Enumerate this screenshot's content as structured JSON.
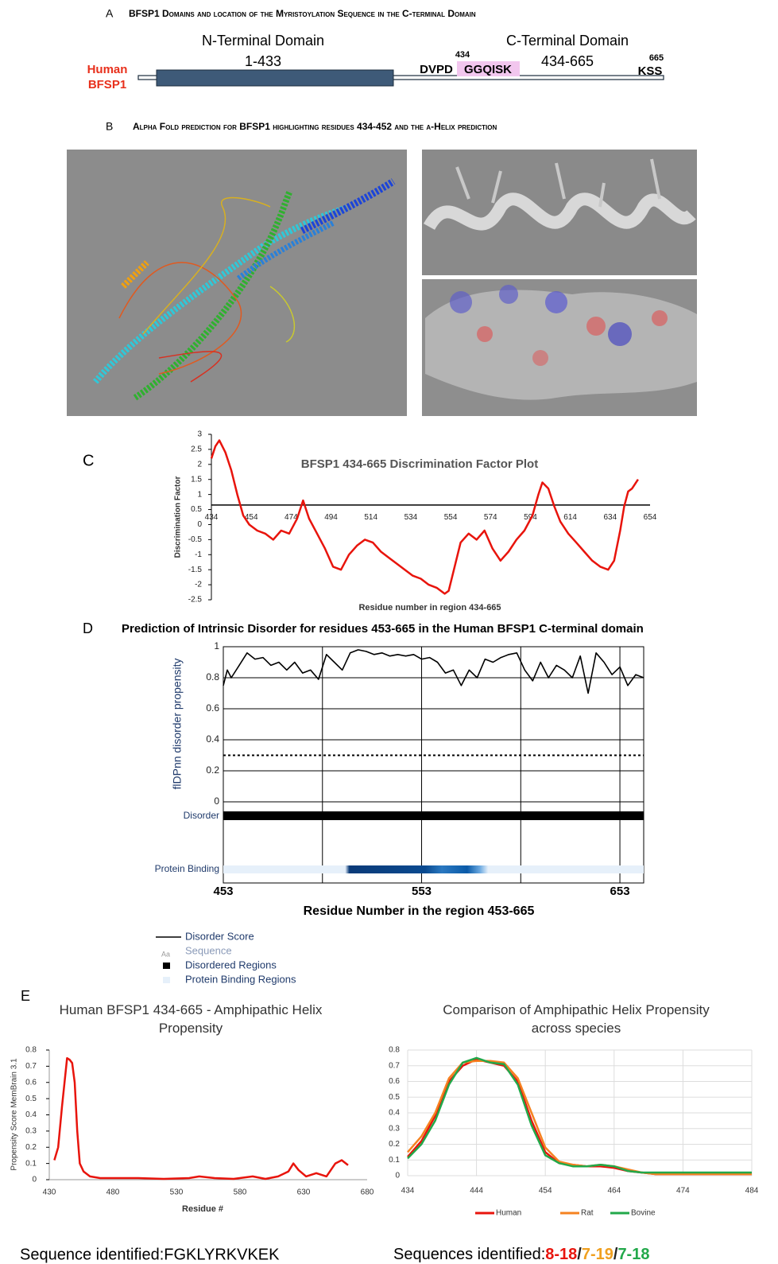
{
  "panel_a": {
    "label": "A",
    "title": "BFSP1 Domains and location of the Myristoylation Sequence in the C-terminal Domain",
    "species": [
      "Human",
      "BFSP1"
    ],
    "n_domain": {
      "name": "N-Terminal Domain",
      "range": "1-433"
    },
    "c_domain": {
      "name": "C-Terminal Domain",
      "range": "434-665"
    },
    "motif_start": "434",
    "motif_prefix": "DVPD",
    "motif": "GGQISK",
    "end_position": "665",
    "end_motif": "KSS"
  },
  "panel_b": {
    "label": "B",
    "title": "Alpha Fold prediction for BFSP1 highlighting residues 434-452 and the α-Helix prediction"
  },
  "chart_data": [
    {
      "type": "line",
      "panel_label": "C",
      "title": "BFSP1 434-665 Discrimination Factor Plot",
      "ylabel": "Discrimination Factor",
      "xlabel": "Residue number in region 434-665",
      "x": [
        434,
        436,
        438,
        441,
        444,
        447,
        450,
        453,
        457,
        461,
        465,
        469,
        473,
        477,
        480,
        483,
        487,
        491,
        495,
        499,
        503,
        507,
        511,
        515,
        519,
        523,
        527,
        531,
        535,
        539,
        543,
        547,
        551,
        553,
        556,
        559,
        563,
        567,
        571,
        575,
        579,
        583,
        587,
        591,
        595,
        598,
        600,
        603,
        606,
        609,
        613,
        617,
        621,
        625,
        629,
        633,
        636,
        639,
        641,
        643,
        645,
        648
      ],
      "values": [
        2.2,
        2.6,
        2.8,
        2.4,
        1.8,
        1.0,
        0.3,
        0.0,
        -0.2,
        -0.3,
        -0.5,
        -0.2,
        -0.3,
        0.2,
        0.8,
        0.2,
        -0.3,
        -0.8,
        -1.4,
        -1.5,
        -1.0,
        -0.7,
        -0.5,
        -0.6,
        -0.9,
        -1.1,
        -1.3,
        -1.5,
        -1.7,
        -1.8,
        -2.0,
        -2.1,
        -2.3,
        -2.2,
        -1.4,
        -0.6,
        -0.3,
        -0.5,
        -0.2,
        -0.8,
        -1.2,
        -0.9,
        -0.5,
        -0.2,
        0.3,
        1.0,
        1.4,
        1.2,
        0.6,
        0.1,
        -0.3,
        -0.6,
        -0.9,
        -1.2,
        -1.4,
        -1.5,
        -1.2,
        -0.2,
        0.6,
        1.1,
        1.2,
        1.5
      ],
      "color": "#e8140c",
      "threshold": 0.65,
      "xlim": [
        434,
        654
      ],
      "xticks": [
        434,
        454,
        474,
        494,
        514,
        534,
        554,
        574,
        594,
        614,
        634,
        654
      ],
      "ylim": [
        -2.5,
        3
      ],
      "yticks": [
        -2.5,
        -2,
        -1.5,
        -1,
        -0.5,
        0,
        0.5,
        1,
        1.5,
        2,
        2.5,
        3
      ]
    },
    {
      "type": "line",
      "panel_label": "D",
      "title": "Prediction of Intrinsic Disorder for residues 453-665 in the Human BFSP1 C-terminal domain",
      "ylabel": "flDPnn disorder propensity",
      "xlabel": "Residue Number in the region 453-665",
      "x": [
        453,
        455,
        457,
        461,
        465,
        469,
        473,
        477,
        481,
        485,
        489,
        493,
        497,
        501,
        505,
        509,
        513,
        517,
        521,
        525,
        529,
        533,
        537,
        541,
        545,
        549,
        553,
        557,
        561,
        565,
        569,
        573,
        577,
        581,
        585,
        589,
        593,
        597,
        601,
        605,
        609,
        613,
        617,
        621,
        625,
        629,
        633,
        637,
        641,
        645,
        649,
        653,
        657,
        661,
        665
      ],
      "series": [
        {
          "name": "Disorder Score",
          "color": "#000000",
          "values": [
            0.75,
            0.85,
            0.8,
            0.88,
            0.96,
            0.92,
            0.93,
            0.88,
            0.9,
            0.85,
            0.9,
            0.83,
            0.85,
            0.79,
            0.95,
            0.9,
            0.85,
            0.96,
            0.98,
            0.97,
            0.95,
            0.96,
            0.94,
            0.95,
            0.94,
            0.95,
            0.92,
            0.93,
            0.9,
            0.83,
            0.85,
            0.75,
            0.85,
            0.8,
            0.92,
            0.9,
            0.93,
            0.95,
            0.96,
            0.85,
            0.78,
            0.9,
            0.8,
            0.88,
            0.85,
            0.8,
            0.94,
            0.7,
            0.96,
            0.9,
            0.82,
            0.87,
            0.75,
            0.82,
            0.8
          ]
        }
      ],
      "threshold": 0.3,
      "tracks": [
        "Disorder",
        "Protein Binding"
      ],
      "legend_extra": [
        {
          "symbol": "Aa",
          "label": "Sequence"
        },
        {
          "label": "Disordered Regions"
        },
        {
          "label": "Protein Binding Regions"
        }
      ],
      "xlim": [
        453,
        665
      ],
      "xticks": [
        453,
        553,
        653
      ],
      "xgrid": [
        503,
        553,
        603,
        653
      ],
      "ylim": [
        0,
        1
      ],
      "yticks": [
        0,
        0.2,
        0.4,
        0.6,
        0.8,
        1
      ],
      "grid": true
    },
    {
      "type": "line",
      "panel_label": "E",
      "title": "Human BFSP1 434-665 - Amphipathic Helix Propensity",
      "ylabel": "Propensity Score MemBrain 3.1",
      "xlabel": "Residue #",
      "caption": "Sequence identified:FGKLYRKVKEK",
      "x": [
        434,
        437,
        440,
        442,
        444,
        446,
        448,
        450,
        452,
        454,
        457,
        462,
        470,
        480,
        500,
        520,
        540,
        548,
        560,
        575,
        590,
        600,
        610,
        618,
        622,
        626,
        632,
        640,
        648,
        655,
        660,
        665
      ],
      "values": [
        0.12,
        0.2,
        0.45,
        0.6,
        0.75,
        0.74,
        0.72,
        0.6,
        0.3,
        0.1,
        0.05,
        0.02,
        0.01,
        0.01,
        0.01,
        0.005,
        0.01,
        0.02,
        0.01,
        0.005,
        0.02,
        0.005,
        0.02,
        0.05,
        0.1,
        0.06,
        0.02,
        0.04,
        0.02,
        0.1,
        0.12,
        0.09
      ],
      "color": "#e8140c",
      "xlim": [
        430,
        680
      ],
      "xticks": [
        430,
        480,
        530,
        580,
        630,
        680
      ],
      "ylim": [
        0,
        0.8
      ],
      "yticks": [
        0,
        0.1,
        0.2,
        0.3,
        0.4,
        0.5,
        0.6,
        0.7,
        0.8
      ]
    },
    {
      "type": "line",
      "title": "Comparison of Amphipathic Helix Propensity across species",
      "caption": {
        "prefix": "Sequences identified:",
        "parts": [
          {
            "text": "8-18",
            "color": "#e8140c"
          },
          {
            "text": "/",
            "color": "#222222"
          },
          {
            "text": "7-19",
            "color": "#f0a020"
          },
          {
            "text": "/",
            "color": "#222222"
          },
          {
            "text": "7-18",
            "color": "#22a84a"
          }
        ]
      },
      "x": [
        434,
        436,
        438,
        440,
        442,
        444,
        446,
        448,
        450,
        452,
        454,
        456,
        458,
        460,
        462,
        464,
        466,
        468,
        470,
        474,
        478,
        484
      ],
      "series": [
        {
          "name": "Human",
          "color": "#e8140c",
          "values": [
            0.12,
            0.22,
            0.38,
            0.6,
            0.7,
            0.74,
            0.72,
            0.7,
            0.6,
            0.35,
            0.15,
            0.08,
            0.07,
            0.06,
            0.06,
            0.05,
            0.03,
            0.02,
            0.01,
            0.01,
            0.01,
            0.01
          ]
        },
        {
          "name": "Rat",
          "color": "#f58220",
          "values": [
            0.15,
            0.25,
            0.4,
            0.62,
            0.72,
            0.73,
            0.73,
            0.72,
            0.62,
            0.4,
            0.18,
            0.09,
            0.07,
            0.06,
            0.07,
            0.06,
            0.04,
            0.02,
            0.01,
            0.01,
            0.01,
            0.01
          ]
        },
        {
          "name": "Bovine",
          "color": "#22a84a",
          "values": [
            0.11,
            0.2,
            0.35,
            0.58,
            0.72,
            0.75,
            0.72,
            0.71,
            0.58,
            0.32,
            0.13,
            0.08,
            0.06,
            0.06,
            0.07,
            0.06,
            0.03,
            0.02,
            0.02,
            0.02,
            0.02,
            0.02
          ]
        }
      ],
      "xlim": [
        434,
        484
      ],
      "xticks": [
        434,
        444,
        454,
        464,
        474,
        484
      ],
      "ylim": [
        0,
        0.8
      ],
      "yticks": [
        0,
        0.1,
        0.2,
        0.3,
        0.4,
        0.5,
        0.6,
        0.7,
        0.8
      ],
      "grid": true
    }
  ]
}
